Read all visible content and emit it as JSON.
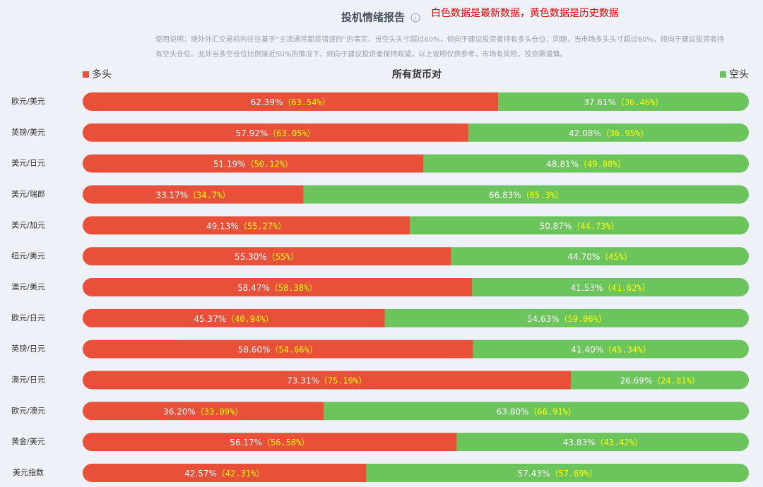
{
  "chart_data": {
    "type": "stacked-bar-horizontal",
    "title": "投机情绪报告",
    "annotation": "白色数据是最新数据，黄色数据是历史数据",
    "description": "使用说明：境外外汇交易机构往往基于“主流通常都是错误的”的事实，当空头头寸超过60%，倾向于建议投资者持有多头仓位；同理，当市场多头头寸超过60%，倾向于建议投资者持有空头仓位。此外当多空仓位比例接近50%的情况下，倾向于建议投资者保持观望。以上说明仅供参考，市场有风险，投资需谨慎。",
    "axis_title": "所有货币对",
    "xlim": [
      0,
      100
    ],
    "categories": [
      "欧元/美元",
      "英镑/美元",
      "美元/日元",
      "美元/瑞郎",
      "美元/加元",
      "纽元/美元",
      "澳元/美元",
      "欧元/日元",
      "英镑/日元",
      "澳元/日元",
      "欧元/澳元",
      "黄金/美元",
      "美元指数"
    ],
    "series": [
      {
        "name": "多头",
        "color": "#e8503a",
        "values": [
          62.39,
          57.92,
          51.19,
          33.17,
          49.13,
          55.3,
          58.47,
          45.37,
          58.6,
          73.31,
          36.2,
          56.17,
          42.57
        ],
        "value_labels": [
          "62.39%",
          "57.92%",
          "51.19%",
          "33.17%",
          "49.13%",
          "55.30%",
          "58.47%",
          "45.37%",
          "58.60%",
          "73.31%",
          "36.20%",
          "56.17%",
          "42.57%"
        ],
        "history_values": [
          63.54,
          63.05,
          50.12,
          34.7,
          55.27,
          55,
          58.38,
          40.94,
          54.66,
          75.19,
          33.09,
          56.58,
          42.31
        ],
        "history_labels": [
          "（63.54%）",
          "（63.05%）",
          "（50.12%）",
          "（34.7%）",
          "（55.27%）",
          "（55%）",
          "（58.38%）",
          "（40.94%）",
          "（54.66%）",
          "（75.19%）",
          "（33.09%）",
          "（56.58%）",
          "（42.31%）"
        ]
      },
      {
        "name": "空头",
        "color": "#6cc55c",
        "values": [
          37.61,
          42.08,
          48.81,
          66.83,
          50.87,
          44.7,
          41.53,
          54.63,
          41.4,
          26.69,
          63.8,
          43.83,
          57.43
        ],
        "value_labels": [
          "37.61%",
          "42.08%",
          "48.81%",
          "66.83%",
          "50.87%",
          "44.70%",
          "41.53%",
          "54.63%",
          "41.40%",
          "26.69%",
          "63.80%",
          "43.83%",
          "57.43%"
        ],
        "history_values": [
          36.46,
          36.95,
          49.88,
          65.3,
          44.73,
          45,
          41.62,
          59.06,
          45.34,
          24.81,
          66.91,
          43.42,
          57.69
        ],
        "history_labels": [
          "（36.46%）",
          "（36.95%）",
          "（49.88%）",
          "（65.3%）",
          "（44.73%）",
          "（45%）",
          "（41.62%）",
          "（59.06%）",
          "（45.34%）",
          "（24.81%）",
          "（66.91%）",
          "（43.42%）",
          "（57.69%）"
        ]
      }
    ]
  }
}
